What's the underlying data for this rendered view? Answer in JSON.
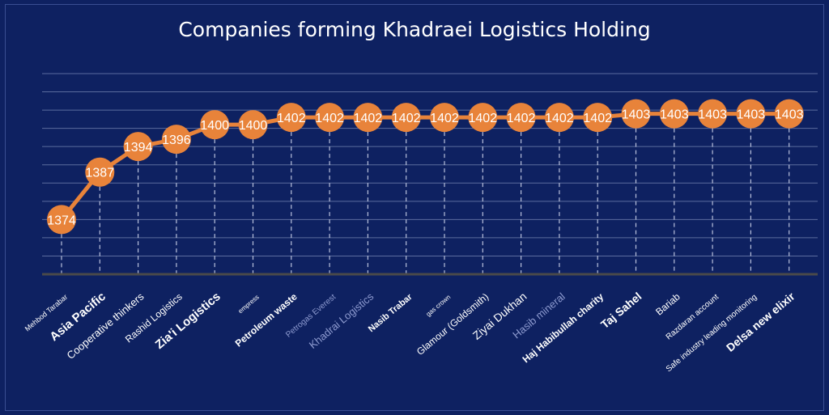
{
  "chart_data": {
    "type": "line",
    "title": "Companies forming Khadraei Logistics Holding",
    "xlabel": "",
    "ylabel": "",
    "ylim": [
      1359,
      1414
    ],
    "grid": true,
    "legend": "none",
    "categories": [
      "Mehbod Tarabar",
      "Asia Pacific",
      "Cooperative thinkers",
      "Rashid Logistics",
      "Zia'i Logistics",
      "empress",
      "Petroleum waste",
      "Petrogas Everest",
      "Khadrai Logistics",
      "Nasib Trabar",
      "gas crown",
      "Glamour (Goldsmith)",
      "Ziyai Dukhan",
      "Hasib mineral",
      "Haj Habibullah charity",
      "Taj Sahel",
      "Bariab",
      "Razdaran account",
      "Safe industry leading monitoring",
      "Delsa new elixir"
    ],
    "series": [
      {
        "values": [
          1374,
          1387,
          1394,
          1396,
          1400,
          1400,
          1402,
          1402,
          1402,
          1402,
          1402,
          1402,
          1402,
          1402,
          1402,
          1403,
          1403,
          1403,
          1403,
          1403
        ]
      }
    ],
    "colors": {
      "background": "#0e2161",
      "line": "#e8833a",
      "marker": "#e8833a",
      "grid": "#5b6c9e",
      "baseline": "#4a4a4a",
      "text": "#ffffff",
      "muted_label": "#8e9bd0"
    },
    "label_styles": [
      {
        "size": 9,
        "bold": false,
        "muted": false
      },
      {
        "size": 15,
        "bold": true,
        "muted": false
      },
      {
        "size": 13,
        "bold": false,
        "muted": false
      },
      {
        "size": 12,
        "bold": false,
        "muted": false
      },
      {
        "size": 15,
        "bold": true,
        "muted": false
      },
      {
        "size": 8,
        "bold": false,
        "muted": false
      },
      {
        "size": 12,
        "bold": true,
        "muted": false
      },
      {
        "size": 10,
        "bold": false,
        "muted": true
      },
      {
        "size": 13,
        "bold": false,
        "muted": true
      },
      {
        "size": 11,
        "bold": true,
        "muted": false
      },
      {
        "size": 8,
        "bold": false,
        "muted": false
      },
      {
        "size": 12,
        "bold": false,
        "muted": false
      },
      {
        "size": 14,
        "bold": false,
        "muted": false
      },
      {
        "size": 13,
        "bold": false,
        "muted": true
      },
      {
        "size": 12,
        "bold": true,
        "muted": false
      },
      {
        "size": 14,
        "bold": true,
        "muted": false
      },
      {
        "size": 12,
        "bold": false,
        "muted": false
      },
      {
        "size": 10,
        "bold": false,
        "muted": false
      },
      {
        "size": 10,
        "bold": false,
        "muted": false
      },
      {
        "size": 14,
        "bold": true,
        "muted": false
      }
    ]
  }
}
